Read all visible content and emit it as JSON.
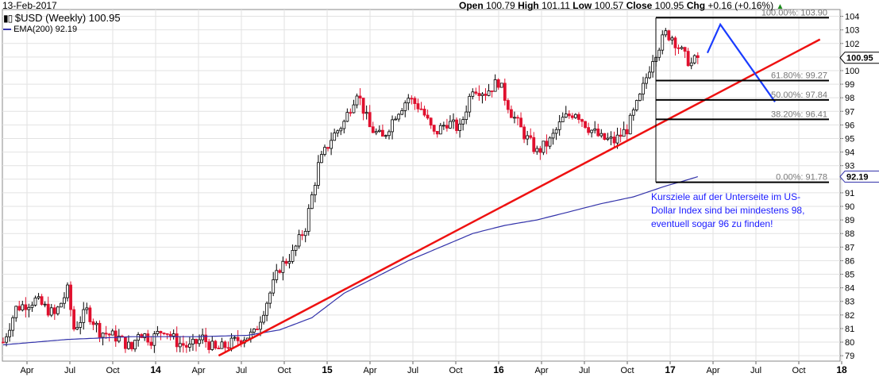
{
  "header": {
    "date": "13-Feb-2017",
    "open_label": "Open",
    "open": "100.79",
    "high_label": "High",
    "high": "101.11",
    "low_label": "Low",
    "low": "100.57",
    "close_label": "Close",
    "close": "100.95",
    "chg_label": "Chg",
    "chg": "+0.16 (+0.16%)",
    "chg_icon": "triangle-up-icon"
  },
  "legend": {
    "symbol_line": "$USD (Weekly) 100.95",
    "ema_line": "EMA(200) 92.19"
  },
  "annotation": {
    "text": "Kursziele auf der Unterseite im US-Dollar Index sind bei mindestens 98, eventuell sogar 96 zu finden!"
  },
  "colors": {
    "up_candle": "#000000",
    "down_candle": "#e0102e",
    "ema": "#3333aa",
    "trendline": "#ee1111",
    "projection": "#1a3cff",
    "grid": "#e2e2e2",
    "fib": "#000000"
  },
  "chart_data": {
    "type": "candlestick",
    "title": "$USD (Weekly)",
    "ylim": [
      78.6,
      104.5
    ],
    "y_ticks": [
      79,
      80,
      81,
      82,
      83,
      84,
      85,
      86,
      87,
      88,
      89,
      90,
      91,
      92,
      93,
      94,
      95,
      96,
      97,
      98,
      99,
      100,
      101,
      102,
      103,
      104
    ],
    "x_ticks": [
      "Apr",
      "Jul",
      "Oct",
      "14",
      "Apr",
      "Jul",
      "Oct",
      "15",
      "Apr",
      "Jul",
      "Oct",
      "16",
      "Apr",
      "Jul",
      "Oct",
      "17",
      "Apr",
      "Jul",
      "Oct",
      "18"
    ],
    "price_path": [
      [
        0,
        80.0
      ],
      [
        4,
        82.5
      ],
      [
        10,
        83.1
      ],
      [
        16,
        82.0
      ],
      [
        20,
        83.8
      ],
      [
        22,
        81.0
      ],
      [
        26,
        82.3
      ],
      [
        30,
        80.8
      ],
      [
        36,
        80.3
      ],
      [
        40,
        79.5
      ],
      [
        42,
        80.8
      ],
      [
        46,
        80.2
      ],
      [
        50,
        81.0
      ],
      [
        54,
        80.0
      ],
      [
        58,
        79.6
      ],
      [
        62,
        80.3
      ],
      [
        66,
        79.4
      ],
      [
        70,
        79.8
      ],
      [
        74,
        80.3
      ],
      [
        78,
        80.6
      ],
      [
        82,
        83.0
      ],
      [
        86,
        85.5
      ],
      [
        90,
        86.5
      ],
      [
        94,
        88.5
      ],
      [
        98,
        93.0
      ],
      [
        102,
        95.0
      ],
      [
        106,
        96.2
      ],
      [
        110,
        98.5
      ],
      [
        114,
        95.8
      ],
      [
        118,
        95.0
      ],
      [
        122,
        96.8
      ],
      [
        126,
        98.0
      ],
      [
        130,
        97.2
      ],
      [
        134,
        95.3
      ],
      [
        138,
        96.2
      ],
      [
        142,
        95.7
      ],
      [
        146,
        98.8
      ],
      [
        150,
        98.4
      ],
      [
        154,
        99.2
      ],
      [
        158,
        96.9
      ],
      [
        162,
        95.3
      ],
      [
        166,
        94.0
      ],
      [
        170,
        94.8
      ],
      [
        174,
        96.4
      ],
      [
        178,
        97.0
      ],
      [
        182,
        95.8
      ],
      [
        186,
        95.0
      ],
      [
        190,
        94.8
      ],
      [
        194,
        95.7
      ],
      [
        198,
        98.0
      ],
      [
        202,
        101.0
      ],
      [
        206,
        102.7
      ],
      [
        208,
        102.5
      ],
      [
        212,
        101.0
      ],
      [
        214,
        100.5
      ],
      [
        216,
        100.95
      ]
    ],
    "high": 101.11,
    "low": 100.57,
    "ema": {
      "name": "EMA(200)",
      "values": [
        [
          0,
          79.8
        ],
        [
          20,
          80.2
        ],
        [
          40,
          80.4
        ],
        [
          60,
          80.4
        ],
        [
          76,
          80.5
        ],
        [
          86,
          80.9
        ],
        [
          96,
          81.8
        ],
        [
          106,
          83.6
        ],
        [
          116,
          84.8
        ],
        [
          126,
          86.0
        ],
        [
          136,
          87.0
        ],
        [
          146,
          88.0
        ],
        [
          156,
          88.6
        ],
        [
          166,
          89.0
        ],
        [
          176,
          89.6
        ],
        [
          186,
          90.2
        ],
        [
          196,
          90.7
        ],
        [
          206,
          91.5
        ],
        [
          212,
          91.9
        ],
        [
          216,
          92.19
        ]
      ]
    },
    "trendline": {
      "from": [
        67,
        79.0
      ],
      "to": [
        254,
        102.3
      ]
    },
    "projection": [
      [
        219,
        101.3
      ],
      [
        223,
        103.4
      ],
      [
        240,
        97.7
      ]
    ],
    "fibonacci": [
      {
        "label": "100.00%: 103.90",
        "value": 103.9
      },
      {
        "label": "61.80%: 99.27",
        "value": 99.27
      },
      {
        "label": "50.00%: 97.84",
        "value": 97.84
      },
      {
        "label": "38.20%: 96.41",
        "value": 96.41
      },
      {
        "label": "0.00%: 91.78",
        "value": 91.78
      }
    ],
    "last_price": 100.95,
    "last_price_label": "100.95",
    "ema_last_label": "92.19",
    "grid": true
  }
}
